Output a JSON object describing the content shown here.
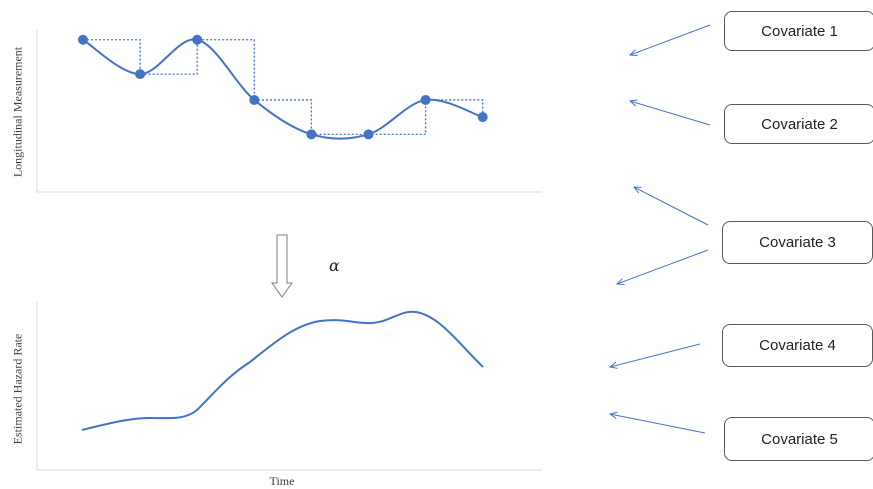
{
  "top_panel": {
    "ylabel": "Longitudinal Measurement",
    "points": [
      {
        "t": 1,
        "v": 8.3
      },
      {
        "t": 2,
        "v": 6.3
      },
      {
        "t": 3,
        "v": 8.3
      },
      {
        "t": 4,
        "v": 4.8
      },
      {
        "t": 5,
        "v": 2.8
      },
      {
        "t": 6,
        "v": 2.8
      },
      {
        "t": 7,
        "v": 4.8
      },
      {
        "t": 8,
        "v": 3.8
      }
    ]
  },
  "link_symbol": "α",
  "bottom_panel": {
    "ylabel": "Estimated Hazard Rate",
    "xlabel": "Time"
  },
  "covariates": [
    {
      "label": "Covariate 1"
    },
    {
      "label": "Covariate 2"
    },
    {
      "label": "Covariate 3"
    },
    {
      "label": "Covariate 4"
    },
    {
      "label": "Covariate 5"
    }
  ],
  "colors": {
    "line": "#4472c4",
    "axis": "#d9d9d9",
    "arrow_outline": "#7f7f7f"
  }
}
